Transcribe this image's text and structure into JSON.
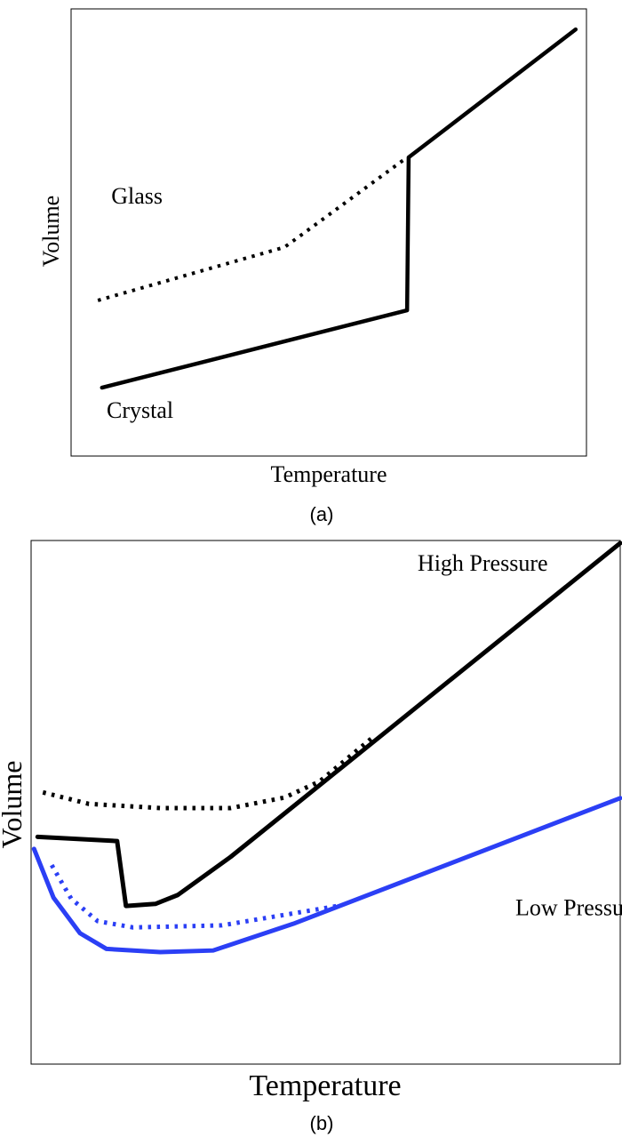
{
  "chart_data": [
    {
      "type": "line",
      "panel_label": "(a)",
      "xlabel": "Temperature",
      "ylabel": "Volume",
      "xlim": [
        0,
        100
      ],
      "ylim": [
        0,
        100
      ],
      "grid": false,
      "annotations": [
        {
          "text": "Glass",
          "x": 7.8,
          "y": 56.5
        },
        {
          "text": "Crystal",
          "x": 6.9,
          "y": 8.5
        }
      ],
      "series": [
        {
          "style": "dotted",
          "color": "#000000",
          "points": [
            [
              5.2,
              34.8
            ],
            [
              41.4,
              46.7
            ],
            [
              45.7,
              50.3
            ],
            [
              65.2,
              66.8
            ]
          ]
        },
        {
          "style": "solid",
          "color": "#000000",
          "points": [
            [
              6.0,
              15.3
            ],
            [
              65.2,
              32.6
            ],
            [
              65.5,
              66.8
            ],
            [
              97.9,
              95.4
            ]
          ]
        }
      ]
    },
    {
      "type": "line",
      "panel_label": "(b)",
      "xlabel": "Temperature",
      "ylabel": "Volume",
      "xlim": [
        0,
        100
      ],
      "ylim": [
        0,
        100
      ],
      "grid": false,
      "annotations": [
        {
          "text": "High Pressure",
          "x": 65.6,
          "y": 94.2
        },
        {
          "text": "Low Pressure",
          "x": 82.2,
          "y": 28.4
        }
      ],
      "series": [
        {
          "style": "dotted",
          "color": "#000000",
          "points": [
            [
              2.0,
              51.9
            ],
            [
              9.8,
              49.7
            ],
            [
              21.9,
              48.9
            ],
            [
              33.9,
              48.9
            ],
            [
              43.0,
              50.9
            ],
            [
              49.0,
              54.0
            ],
            [
              58.1,
              62.5
            ]
          ]
        },
        {
          "style": "solid",
          "color": "#000000",
          "points": [
            [
              1.1,
              43.4
            ],
            [
              14.6,
              42.6
            ],
            [
              16.1,
              30.2
            ],
            [
              21.1,
              30.6
            ],
            [
              24.9,
              32.3
            ],
            [
              33.9,
              39.6
            ],
            [
              100,
              99.5
            ]
          ]
        },
        {
          "style": "dotted",
          "color": "#2b3ff5",
          "points": [
            [
              3.5,
              38.0
            ],
            [
              6.8,
              31.6
            ],
            [
              11.3,
              27.3
            ],
            [
              17.3,
              26.1
            ],
            [
              32.4,
              26.5
            ],
            [
              52.0,
              30.2
            ]
          ]
        },
        {
          "style": "solid",
          "color": "#2b3ff5",
          "points": [
            [
              0.5,
              41.1
            ],
            [
              3.8,
              31.8
            ],
            [
              8.3,
              25.0
            ],
            [
              12.8,
              22.0
            ],
            [
              21.9,
              21.4
            ],
            [
              30.9,
              21.7
            ],
            [
              44.5,
              26.8
            ],
            [
              100,
              50.8
            ]
          ]
        }
      ]
    }
  ]
}
